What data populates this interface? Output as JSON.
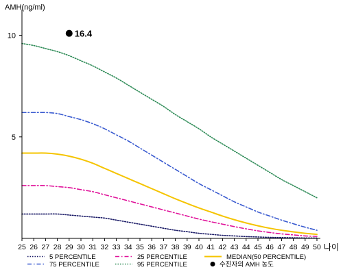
{
  "chart_data": {
    "type": "line",
    "title": "",
    "ylabel": "AMH(ng/ml)",
    "xlabel": "나이",
    "ylim": [
      0,
      11
    ],
    "yticks": [
      5,
      10
    ],
    "x": [
      25,
      26,
      27,
      28,
      29,
      30,
      31,
      32,
      33,
      34,
      35,
      36,
      37,
      38,
      39,
      40,
      41,
      42,
      43,
      44,
      45,
      46,
      47,
      48,
      49,
      50
    ],
    "grid": false,
    "legend_position": "bottom",
    "series": [
      {
        "name": "5 PERCENTILE",
        "style": "dotted",
        "color": "#1a1a66",
        "values": [
          1.2,
          1.2,
          1.2,
          1.2,
          1.15,
          1.1,
          1.05,
          1.0,
          0.9,
          0.8,
          0.7,
          0.6,
          0.5,
          0.4,
          0.33,
          0.25,
          0.2,
          0.15,
          0.12,
          0.09,
          0.07,
          0.05,
          0.04,
          0.03,
          0.02,
          0.02
        ]
      },
      {
        "name": "25 PERCENTILE",
        "style": "dashdot",
        "color": "#e0129a",
        "values": [
          2.6,
          2.6,
          2.6,
          2.55,
          2.5,
          2.4,
          2.3,
          2.15,
          2.0,
          1.85,
          1.7,
          1.55,
          1.4,
          1.25,
          1.1,
          0.95,
          0.82,
          0.7,
          0.58,
          0.47,
          0.37,
          0.29,
          0.22,
          0.17,
          0.12,
          0.1
        ]
      },
      {
        "name": "MEDIAN(50 PERCENTILE)",
        "style": "solid",
        "color": "#f5c400",
        "values": [
          4.2,
          4.2,
          4.2,
          4.15,
          4.05,
          3.9,
          3.7,
          3.45,
          3.2,
          2.95,
          2.7,
          2.45,
          2.2,
          1.95,
          1.72,
          1.5,
          1.3,
          1.1,
          0.92,
          0.76,
          0.62,
          0.5,
          0.4,
          0.32,
          0.25,
          0.2
        ]
      },
      {
        "name": "75 PERCENTILE",
        "style": "dashdot",
        "color": "#3a5bd0",
        "values": [
          6.2,
          6.2,
          6.2,
          6.15,
          6.0,
          5.85,
          5.65,
          5.4,
          5.1,
          4.8,
          4.45,
          4.1,
          3.75,
          3.4,
          3.05,
          2.7,
          2.4,
          2.1,
          1.8,
          1.55,
          1.3,
          1.1,
          0.9,
          0.72,
          0.55,
          0.4
        ]
      },
      {
        "name": "95 PERCENTILE",
        "style": "dotted",
        "color": "#2e8b57",
        "values": [
          9.6,
          9.5,
          9.35,
          9.2,
          9.0,
          8.75,
          8.5,
          8.2,
          7.9,
          7.55,
          7.2,
          6.85,
          6.5,
          6.1,
          5.75,
          5.4,
          5.0,
          4.65,
          4.3,
          3.95,
          3.6,
          3.25,
          2.9,
          2.6,
          2.3,
          2.0
        ]
      }
    ],
    "points": [
      {
        "name": "수진자의 AMH 농도",
        "x": 29,
        "y": 10.1,
        "label": "16.4",
        "color": "#000000"
      }
    ]
  }
}
